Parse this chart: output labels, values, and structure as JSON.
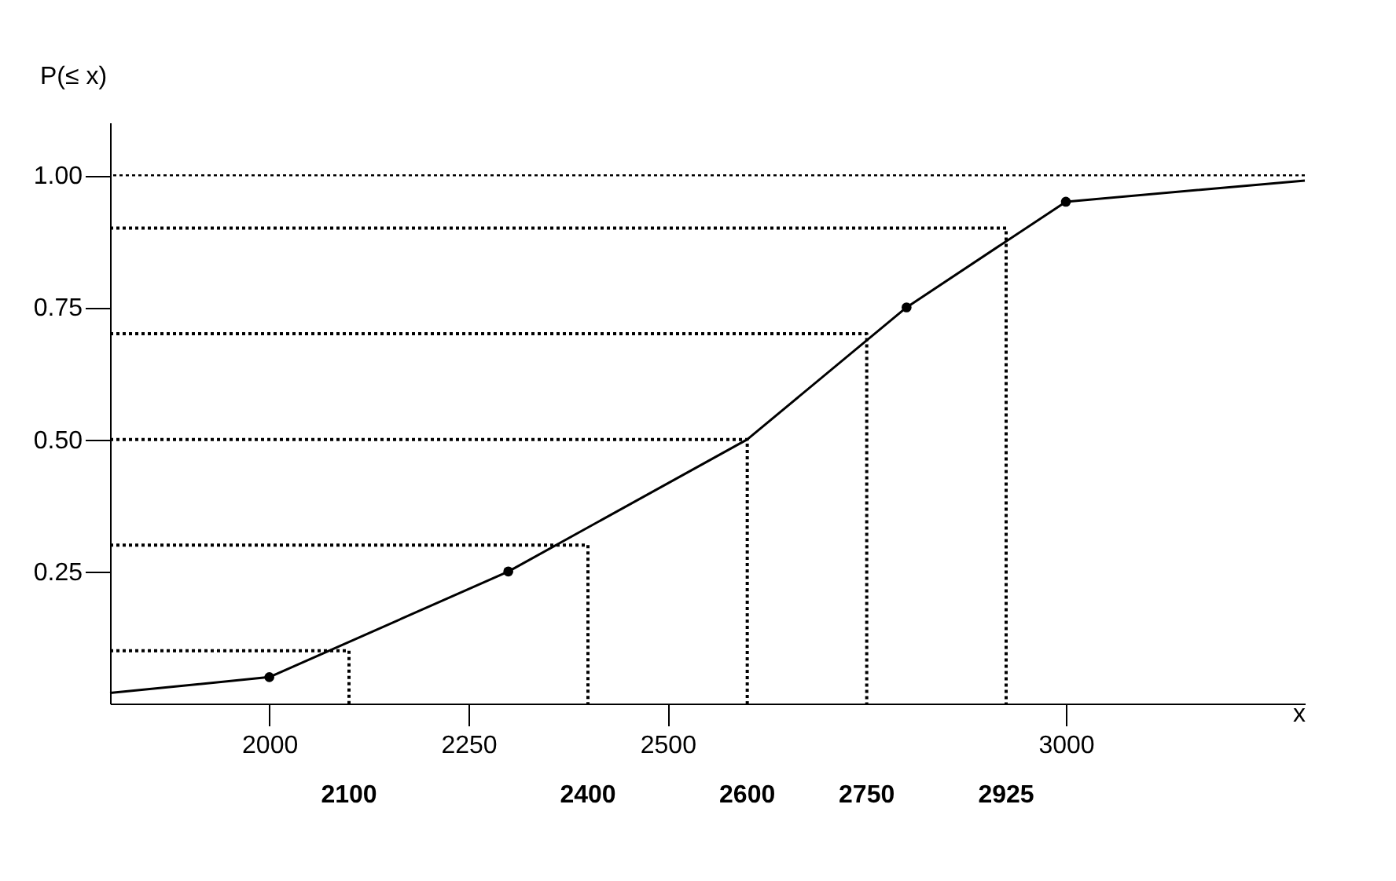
{
  "chart_data": {
    "type": "line",
    "ylabel": "P(≤ x)",
    "xlabel": "x",
    "xlim": [
      1800,
      3300
    ],
    "ylim": [
      0,
      1.1
    ],
    "xticks": [
      2000,
      2250,
      2500,
      3000
    ],
    "yticks": [
      {
        "value": 0.25,
        "label": "0.25"
      },
      {
        "value": 0.5,
        "label": "0.50"
      },
      {
        "value": 0.75,
        "label": "0.75"
      },
      {
        "value": 1.0,
        "label": "1.00"
      }
    ],
    "grid": false,
    "series": [
      {
        "type": "line",
        "color": "#000000",
        "line_style": "solid",
        "marker": "none",
        "x": [
          1800,
          2000,
          2300,
          2600,
          2800,
          3000,
          3300
        ],
        "values": [
          0.02,
          0.05,
          0.25,
          0.5,
          0.75,
          0.95,
          0.99
        ]
      },
      {
        "type": "scatter",
        "color": "#000000",
        "marker": "circle",
        "x": [
          2000,
          2300,
          2800,
          3000
        ],
        "values": [
          0.05,
          0.25,
          0.75,
          0.95
        ]
      },
      {
        "type": "line",
        "color": "#000000",
        "line_style": "dotted",
        "marker": "none",
        "x": [
          1800,
          2100,
          2100
        ],
        "values": [
          0.1,
          0.1,
          0
        ]
      },
      {
        "type": "line",
        "color": "#000000",
        "line_style": "dotted",
        "marker": "none",
        "x": [
          1800,
          2400,
          2400
        ],
        "values": [
          0.3,
          0.3,
          0
        ]
      },
      {
        "type": "line",
        "color": "#000000",
        "line_style": "dotted",
        "marker": "none",
        "x": [
          1800,
          2600,
          2600
        ],
        "values": [
          0.5,
          0.5,
          0
        ]
      },
      {
        "type": "line",
        "color": "#000000",
        "line_style": "dotted",
        "marker": "none",
        "x": [
          1800,
          2750,
          2750
        ],
        "values": [
          0.7,
          0.7,
          0
        ]
      },
      {
        "type": "line",
        "color": "#000000",
        "line_style": "dotted",
        "marker": "none",
        "x": [
          1800,
          2925,
          2925
        ],
        "values": [
          0.9,
          0.9,
          0
        ]
      }
    ],
    "ref_lines": [
      {
        "axis": "y",
        "value": 1.0,
        "color": "#000000",
        "line_style": "dotted"
      }
    ],
    "annotations": [
      "2100",
      "2400",
      "2600",
      "2750",
      "2925"
    ]
  }
}
